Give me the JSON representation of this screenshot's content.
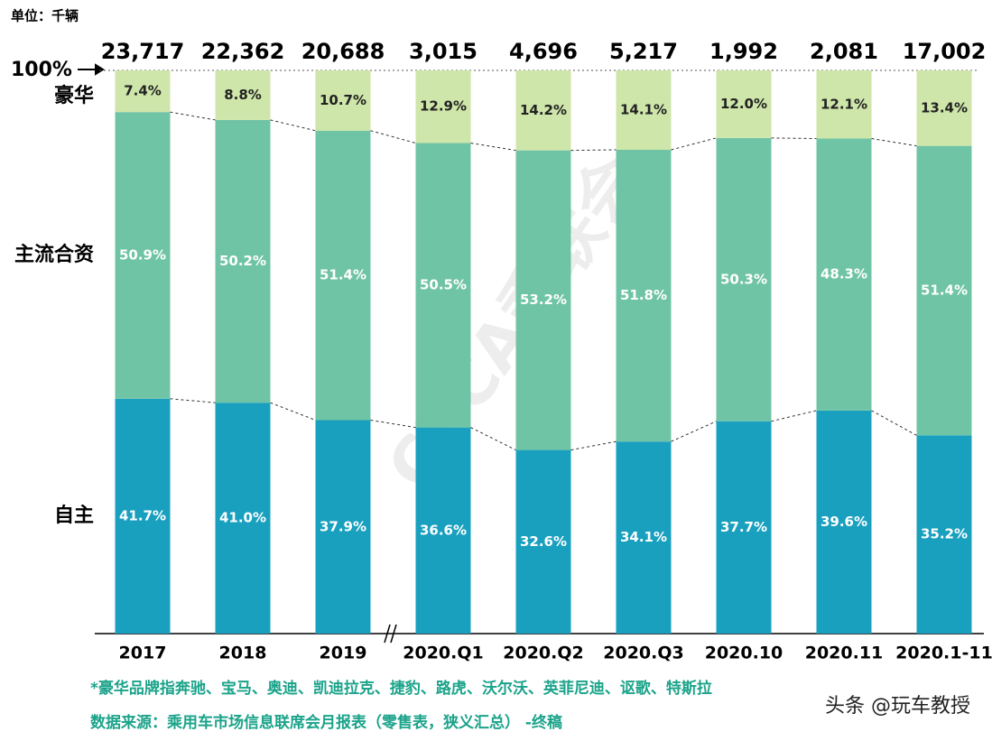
{
  "chart_data": {
    "type": "stacked_bar_100",
    "unit_label": "单位：千辆",
    "categories": [
      "2017",
      "2018",
      "2019",
      "2020.Q1",
      "2020.Q2",
      "2020.Q3",
      "2020.10",
      "2020.11",
      "2020.1-11"
    ],
    "totals": {
      "values": [
        23717,
        22362,
        20688,
        3015,
        4696,
        5217,
        1992,
        2081,
        17002
      ],
      "value_labels": [
        "23,717",
        "22,362",
        "20,688",
        "3,015",
        "4,696",
        "5,217",
        "1,992",
        "2,081",
        "17,002"
      ]
    },
    "series": [
      {
        "name": "自主",
        "color": "#1aa0bf",
        "values": [
          41.7,
          41.0,
          37.9,
          36.6,
          32.6,
          34.1,
          37.7,
          39.6,
          35.2
        ],
        "value_labels": [
          "41.7%",
          "41.0%",
          "37.9%",
          "36.6%",
          "32.6%",
          "34.1%",
          "37.7%",
          "39.6%",
          "35.2%"
        ]
      },
      {
        "name": "主流合资",
        "color": "#70c4a6",
        "values": [
          50.9,
          50.2,
          51.4,
          50.5,
          53.2,
          51.8,
          50.3,
          48.3,
          51.4
        ],
        "value_labels": [
          "50.9%",
          "50.2%",
          "51.4%",
          "50.5%",
          "53.2%",
          "51.8%",
          "50.3%",
          "48.3%",
          "51.4%"
        ]
      },
      {
        "name": "豪华",
        "color": "#cfe6aa",
        "values": [
          7.4,
          8.8,
          10.7,
          12.9,
          14.2,
          14.1,
          12.0,
          12.1,
          13.4
        ],
        "value_labels": [
          "7.4%",
          "8.8%",
          "10.7%",
          "12.9%",
          "14.2%",
          "14.1%",
          "12.0%",
          "12.1%",
          "13.4%"
        ]
      }
    ],
    "ylim": [
      0,
      100
    ],
    "yticks": [
      {
        "value": 100,
        "label": "100%"
      }
    ],
    "footnotes": [
      "*豪华品牌指奔驰、宝马、奥迪、凯迪拉克、捷豹、路虎、沃尔沃、英菲尼迪、讴歌、特斯拉",
      "数据来源：乘用车市场信息联席会月报表（零售表，狭义汇总） -终稿"
    ],
    "watermark": "CPCA乘联会",
    "credit": "头条 @玩车教授"
  }
}
